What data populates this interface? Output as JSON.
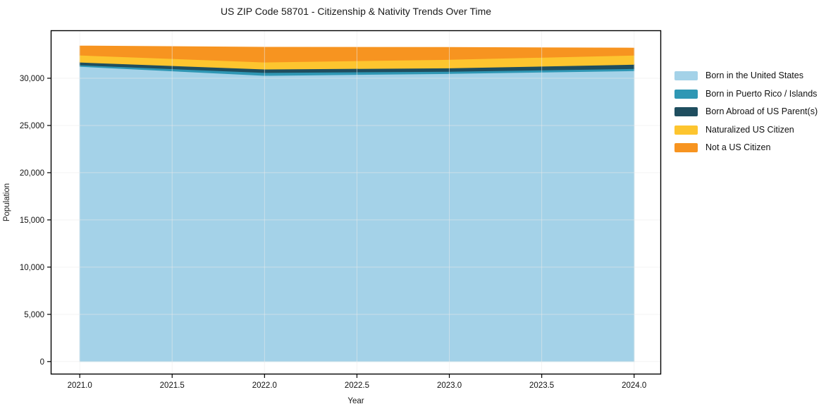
{
  "title": "US ZIP Code 58701 - Citizenship & Nativity Trends Over Time",
  "chart_data": {
    "type": "area",
    "stacked": true,
    "title": "US ZIP Code 58701 - Citizenship & Nativity Trends Over Time",
    "xlabel": "Year",
    "ylabel": "Population",
    "x": [
      2021,
      2022,
      2023,
      2024
    ],
    "series": [
      {
        "name": "Born in the United States",
        "color": "#a4d2e8",
        "values": [
          31250,
          30300,
          30500,
          30800
        ]
      },
      {
        "name": "Born in Puerto Rico / Islands",
        "color": "#2f97b4",
        "values": [
          150,
          300,
          230,
          220
        ]
      },
      {
        "name": "Born Abroad of US Parent(s)",
        "color": "#1f4e5f",
        "values": [
          300,
          370,
          360,
          450
        ]
      },
      {
        "name": "Naturalized US Citizen",
        "color": "#fdc52f",
        "values": [
          750,
          740,
          900,
          970
        ]
      },
      {
        "name": "Not a US Citizen",
        "color": "#f79420",
        "values": [
          970,
          1570,
          1270,
          750
        ]
      }
    ],
    "xlim": [
      2020.843,
      2024.146
    ],
    "ylim": [
      -1360,
      35075
    ],
    "xticks": {
      "values": [
        2021,
        2021.5,
        2022,
        2022.5,
        2023,
        2023.5,
        2024
      ],
      "labels": [
        "2021.0",
        "2021.5",
        "2022.0",
        "2022.5",
        "2023.0",
        "2023.5",
        "2024.0"
      ]
    },
    "yticks": {
      "values": [
        0,
        5000,
        10000,
        15000,
        20000,
        25000,
        30000
      ],
      "labels": [
        "0",
        "5,000",
        "10,000",
        "15,000",
        "20,000",
        "25,000",
        "30,000"
      ]
    },
    "grid": true,
    "legend_position": "right-outside"
  },
  "colors": {
    "grid": "#e9e9e9",
    "frame": "#000000",
    "tick_text": "#111111"
  }
}
